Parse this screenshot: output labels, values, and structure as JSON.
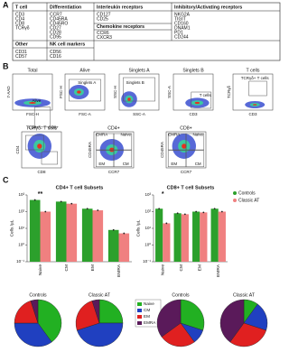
{
  "panel_labels": [
    "A",
    "B",
    "C"
  ],
  "table": {
    "cells": [
      {
        "header": "T cell",
        "items": [
          "CD3",
          "CD4",
          "CD8",
          "TCRγδ"
        ]
      },
      {
        "header": "Differentiation",
        "items": [
          "CCR7",
          "CD45RA",
          "CD45RO",
          "CD27",
          "CD28",
          "CD95"
        ]
      },
      {
        "header": "Interleukin receptors",
        "items": [
          "CD127",
          "CD25"
        ]
      },
      {
        "header": "Chemokine receptors",
        "items": [
          "CCR6",
          "CXCR3"
        ]
      },
      {
        "header": "Inhibitory/Activating receptors",
        "items": [
          "NKG2A",
          "TIGIT",
          "CD160",
          "DNAM1",
          "PD1",
          "CD244"
        ]
      },
      {
        "header": "Other",
        "items": [
          "CD31",
          "CD57"
        ]
      },
      {
        "header": "NK cell markers",
        "items": [
          "CD56",
          "CD16"
        ]
      }
    ]
  },
  "flow_plots": [
    {
      "title": "Total",
      "y_label": "7-AAD",
      "x_label": "FSC-H",
      "gates": [
        "Alive"
      ]
    },
    {
      "title": "Alive",
      "y_label": "FSC-H",
      "x_label": "FSC-A",
      "gates": [
        "Singlets A"
      ]
    },
    {
      "title": "Singlets A",
      "y_label": "SSC-H",
      "x_label": "SSC-A",
      "gates": [
        "Singlets B"
      ]
    },
    {
      "title": "Singlets B",
      "y_label": "SSC-A",
      "x_label": "CD3",
      "gates": [
        "T cells"
      ]
    },
    {
      "title": "T cells",
      "y_label": "TCRγδ",
      "x_label": "CD3",
      "gates": [
        "TCRγδ+ T cells"
      ]
    },
    {
      "title": "TCRγδ- T cells",
      "y_label": "CD4",
      "x_label": "CD8",
      "gates": [
        "CD4+",
        "CD8+"
      ]
    },
    {
      "title": "CD4+",
      "y_label": "CD45RA",
      "x_label": "CCR7",
      "gates": [
        "EMRA",
        "Naive",
        "EM",
        "CM"
      ]
    },
    {
      "title": "CD8+",
      "y_label": "CD45RA",
      "x_label": "CCR7",
      "gates": [
        "EMRA",
        "Naive",
        "EM",
        "CM"
      ]
    }
  ],
  "chart_data": [
    {
      "type": "bar",
      "title": "CD4+ T cell Subsets",
      "y_label": "Cells /µL",
      "log": true,
      "legend": false,
      "categories": [
        "Naive",
        "CM",
        "EM",
        "EMRA"
      ],
      "series": [
        {
          "name": "Controls",
          "color": "#2ca02c",
          "values": [
            500,
            400,
            150,
            8
          ]
        },
        {
          "name": "Classic AT",
          "color": "#f08080",
          "values": [
            100,
            300,
            120,
            5
          ]
        }
      ],
      "ylim": [
        0.1,
        1000
      ],
      "yticks": [
        {
          "value": 0.1,
          "label": "10⁻¹"
        },
        {
          "value": 1,
          "label": "10⁰"
        },
        {
          "value": 10,
          "label": "10¹"
        },
        {
          "value": 100,
          "label": "10²"
        },
        {
          "value": 1000,
          "label": "10³"
        }
      ],
      "annotations": [
        "**"
      ]
    },
    {
      "type": "bar",
      "title": "CD8+ T cell Subsets",
      "y_label": "Cells /µL",
      "log": true,
      "legend": true,
      "categories": [
        "Naive",
        "CM",
        "EM",
        "EMRA"
      ],
      "series": [
        {
          "name": "Controls",
          "color": "#2ca02c",
          "values": [
            150,
            80,
            100,
            150
          ]
        },
        {
          "name": "Classic AT",
          "color": "#f08080",
          "values": [
            20,
            70,
            90,
            100
          ]
        }
      ],
      "ylim": [
        0.1,
        1000
      ],
      "yticks": [
        {
          "value": 0.1,
          "label": "10⁻¹"
        },
        {
          "value": 1,
          "label": "10⁰"
        },
        {
          "value": 10,
          "label": "10¹"
        },
        {
          "value": 100,
          "label": "10²"
        },
        {
          "value": 1000,
          "label": "10³"
        }
      ],
      "annotations": [
        "*"
      ]
    },
    {
      "type": "pie",
      "title": "Controls",
      "legend": true,
      "categories": [
        "Naive",
        "CM",
        "EM",
        "EMRA"
      ],
      "colors": [
        "#22b022",
        "#2040c0",
        "#e02020",
        "#5a1a5a"
      ],
      "values": [
        40,
        35,
        20,
        5
      ]
    },
    {
      "type": "pie",
      "title": "Classic AT",
      "legend": false,
      "categories": [
        "Naive",
        "CM",
        "EM",
        "EMRA"
      ],
      "colors": [
        "#22b022",
        "#2040c0",
        "#e02020",
        "#5a1a5a"
      ],
      "values": [
        25,
        45,
        25,
        5
      ]
    },
    {
      "type": "pie",
      "title": "Controls",
      "legend": false,
      "categories": [
        "Naive",
        "CM",
        "EM",
        "EMRA"
      ],
      "colors": [
        "#22b022",
        "#2040c0",
        "#e02020",
        "#5a1a5a"
      ],
      "values": [
        30,
        10,
        25,
        35
      ]
    },
    {
      "type": "pie",
      "title": "Classic AT",
      "legend": false,
      "categories": [
        "Naive",
        "CM",
        "EM",
        "EMRA"
      ],
      "colors": [
        "#22b022",
        "#2040c0",
        "#e02020",
        "#5a1a5a"
      ],
      "values": [
        10,
        20,
        30,
        40
      ]
    }
  ]
}
